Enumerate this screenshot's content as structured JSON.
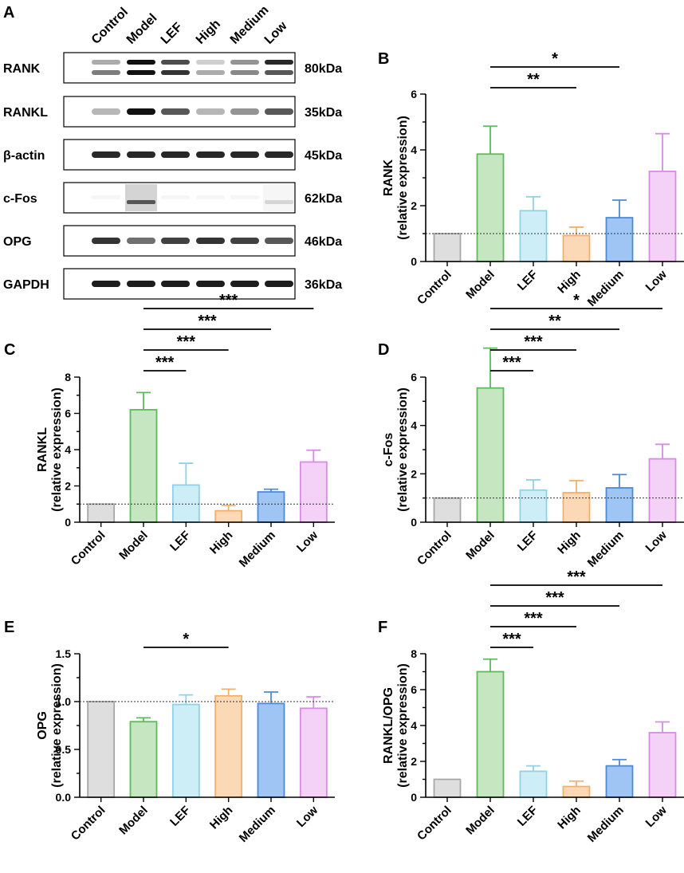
{
  "figure": {
    "panel_a": {
      "letter": "A",
      "lanes": [
        "Control",
        "Model",
        "LEF",
        "High",
        "Medium",
        "Low"
      ],
      "blots": [
        {
          "protein": "RANK",
          "kda": "80kDa",
          "style": "double",
          "intensities": [
            0.35,
            1.0,
            0.75,
            0.2,
            0.45,
            0.9
          ],
          "lower_intensities": [
            0.55,
            1.0,
            0.85,
            0.35,
            0.5,
            0.7
          ]
        },
        {
          "protein": "RANKL",
          "kda": "35kDa",
          "style": "single",
          "intensities": [
            0.3,
            1.0,
            0.7,
            0.3,
            0.45,
            0.7
          ]
        },
        {
          "protein": "β-actin",
          "kda": "45kDa",
          "style": "single",
          "intensities": [
            0.9,
            0.9,
            0.9,
            0.9,
            0.9,
            0.9
          ]
        },
        {
          "protein": "c-Fos",
          "kda": "62kDa",
          "style": "fos",
          "intensities": [
            0.02,
            0.7,
            0.02,
            0.02,
            0.02,
            0.15
          ]
        },
        {
          "protein": "OPG",
          "kda": "46kDa",
          "style": "single",
          "intensities": [
            0.85,
            0.6,
            0.8,
            0.85,
            0.8,
            0.7
          ]
        },
        {
          "protein": "GAPDH",
          "kda": "36kDa",
          "style": "single",
          "intensities": [
            0.95,
            0.95,
            0.95,
            0.95,
            0.95,
            0.95
          ]
        }
      ]
    },
    "colors": {
      "fills": [
        "#dedede",
        "#c6e5c1",
        "#cdeef7",
        "#fcd9b6",
        "#9ec5f3",
        "#f4d2f7"
      ],
      "strokes": [
        "#a7a7a7",
        "#5cbb5a",
        "#8fd2e8",
        "#f3b06b",
        "#4f8ad6",
        "#d98ae6"
      ]
    }
  },
  "chart_data": [
    {
      "panel": "B",
      "type": "bar",
      "categories": [
        "Control",
        "Model",
        "LEF",
        "High",
        "Medium",
        "Low"
      ],
      "values": [
        1.0,
        3.85,
        1.82,
        0.93,
        1.57,
        3.23
      ],
      "errors": [
        0,
        1.0,
        0.5,
        0.3,
        0.63,
        1.35
      ],
      "xlabel": "",
      "ylabel": "RANK",
      "ylabel2": "(relative expression)",
      "ylim": [
        0,
        6
      ],
      "yticks": [
        "0",
        "2",
        "4",
        "6"
      ],
      "ytick_values": [
        0,
        2,
        4,
        6
      ],
      "minor_step": 1,
      "reference_line": 1,
      "significance": [
        {
          "from": 1,
          "to": 4,
          "label": "*",
          "level": 2
        },
        {
          "from": 1,
          "to": 3,
          "label": "**",
          "level": 1
        }
      ]
    },
    {
      "panel": "C",
      "type": "bar",
      "categories": [
        "Control",
        "Model",
        "LEF",
        "High",
        "Medium",
        "Low"
      ],
      "values": [
        1.0,
        6.2,
        2.05,
        0.63,
        1.67,
        3.32
      ],
      "errors": [
        0,
        0.95,
        1.2,
        0.3,
        0.15,
        0.65
      ],
      "xlabel": "",
      "ylabel": "RANKL",
      "ylabel2": "(relative expression)",
      "ylim": [
        0,
        8
      ],
      "yticks": [
        "0",
        "2",
        "4",
        "6",
        "8"
      ],
      "ytick_values": [
        0,
        2,
        4,
        6,
        8
      ],
      "minor_step": 1,
      "reference_line": 1,
      "significance": [
        {
          "from": 1,
          "to": 5,
          "label": "***",
          "level": 4
        },
        {
          "from": 1,
          "to": 4,
          "label": "***",
          "level": 3
        },
        {
          "from": 1,
          "to": 3,
          "label": "***",
          "level": 2
        },
        {
          "from": 1,
          "to": 2,
          "label": "***",
          "level": 1
        }
      ]
    },
    {
      "panel": "D",
      "type": "bar",
      "categories": [
        "Control",
        "Model",
        "LEF",
        "High",
        "Medium",
        "Low"
      ],
      "values": [
        1.0,
        5.55,
        1.33,
        1.22,
        1.42,
        2.62
      ],
      "errors": [
        0,
        1.65,
        0.42,
        0.5,
        0.55,
        0.6
      ],
      "xlabel": "",
      "ylabel": "c-Fos",
      "ylabel2": "(relative expression)",
      "ylim": [
        0,
        6
      ],
      "yticks": [
        "0",
        "2",
        "4",
        "6"
      ],
      "ytick_values": [
        0,
        2,
        4,
        6
      ],
      "minor_step": 1,
      "reference_line": 1,
      "significance": [
        {
          "from": 1,
          "to": 5,
          "label": "*",
          "level": 4
        },
        {
          "from": 1,
          "to": 4,
          "label": "**",
          "level": 3
        },
        {
          "from": 1,
          "to": 3,
          "label": "***",
          "level": 2
        },
        {
          "from": 1,
          "to": 2,
          "label": "***",
          "level": 1
        }
      ]
    },
    {
      "panel": "E",
      "type": "bar",
      "categories": [
        "Control",
        "Model",
        "LEF",
        "High",
        "Medium",
        "Low"
      ],
      "values": [
        1.0,
        0.79,
        0.97,
        1.06,
        0.98,
        0.93
      ],
      "errors": [
        0,
        0.04,
        0.1,
        0.07,
        0.12,
        0.12
      ],
      "xlabel": "",
      "ylabel": "OPG",
      "ylabel2": "(relative expression)",
      "ylim": [
        0,
        1.5
      ],
      "yticks": [
        "0.0",
        "0.5",
        "1.0",
        "1.5"
      ],
      "ytick_values": [
        0,
        0.5,
        1.0,
        1.5
      ],
      "minor_step": 0.25,
      "reference_line": 1,
      "significance": [
        {
          "from": 1,
          "to": 3,
          "label": "*",
          "level": 1
        }
      ]
    },
    {
      "panel": "F",
      "type": "bar",
      "categories": [
        "Control",
        "Model",
        "LEF",
        "High",
        "Medium",
        "Low"
      ],
      "values": [
        1.0,
        7.0,
        1.45,
        0.6,
        1.75,
        3.6
      ],
      "errors": [
        0,
        0.7,
        0.3,
        0.3,
        0.35,
        0.6
      ],
      "xlabel": "",
      "ylabel": "RANKL/OPG",
      "ylabel2": "(relative expression)",
      "ylim": [
        0,
        8
      ],
      "yticks": [
        "0",
        "2",
        "4",
        "6",
        "8"
      ],
      "ytick_values": [
        0,
        2,
        4,
        6,
        8
      ],
      "minor_step": 1,
      "reference_line": null,
      "significance": [
        {
          "from": 1,
          "to": 5,
          "label": "***",
          "level": 4
        },
        {
          "from": 1,
          "to": 4,
          "label": "***",
          "level": 3
        },
        {
          "from": 1,
          "to": 3,
          "label": "***",
          "level": 2
        },
        {
          "from": 1,
          "to": 2,
          "label": "***",
          "level": 1
        }
      ]
    }
  ]
}
